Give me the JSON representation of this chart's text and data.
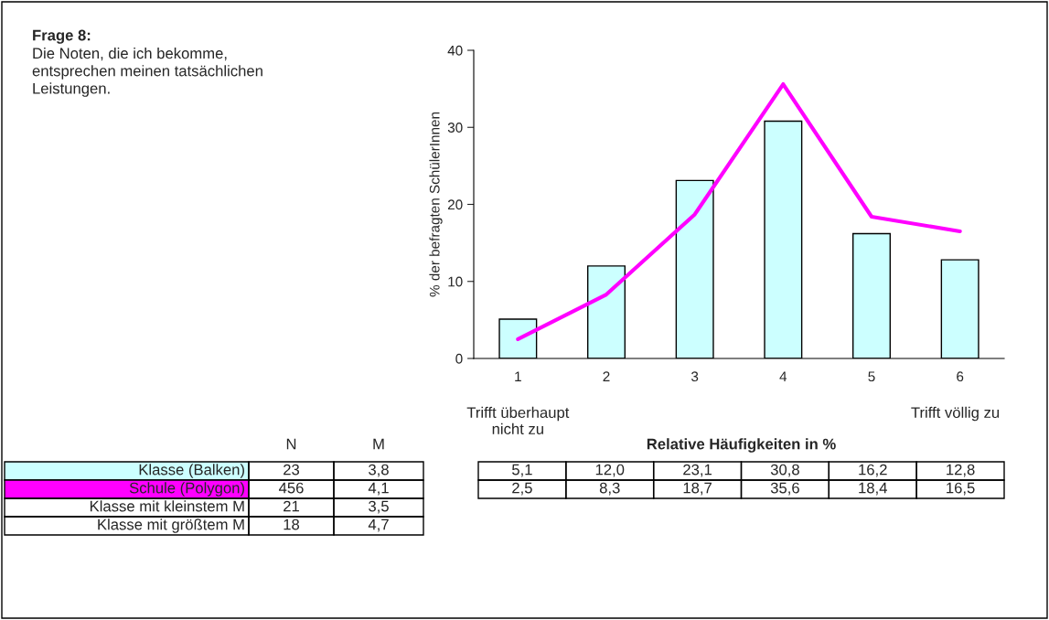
{
  "chart_data": {
    "type": "bar",
    "title": "Frage 8:",
    "subtitle": "Die Noten, die ich bekomme,\nentsprechen meinen tatsächlichen\nLeistungen.",
    "ylabel": "% der befragten SchülerInnen",
    "categories": [
      "1",
      "2",
      "3",
      "4",
      "5",
      "6"
    ],
    "ylim": [
      0,
      40
    ],
    "yticks": [
      0,
      10,
      20,
      30,
      40
    ],
    "series": [
      {
        "name": "Klasse (Balken)",
        "color": "#ccffff",
        "values": [
          5.1,
          12.0,
          23.1,
          30.8,
          16.2,
          12.8
        ],
        "value_labels": [
          "5,1",
          "12,0",
          "23,1",
          "30,8",
          "16,2",
          "12,8"
        ]
      },
      {
        "name": "Schule (Polygon)",
        "type": "line",
        "color": "#ff00ff",
        "values": [
          2.5,
          8.3,
          18.7,
          35.6,
          18.4,
          16.5
        ],
        "value_labels": [
          "2,5",
          "8,3",
          "18,7",
          "35,6",
          "18,4",
          "16,5"
        ]
      }
    ],
    "annotations": [
      "Trifft überhaupt\nnicht zu",
      "Trifft völlig zu",
      "Relative Häufigkeiten in %",
      "N",
      "M",
      "23",
      "3,8",
      "456",
      "4,1",
      "Klasse mit kleinstem M",
      "21",
      "3,5",
      "Klasse mit größtem M",
      "18",
      "4,7"
    ]
  }
}
